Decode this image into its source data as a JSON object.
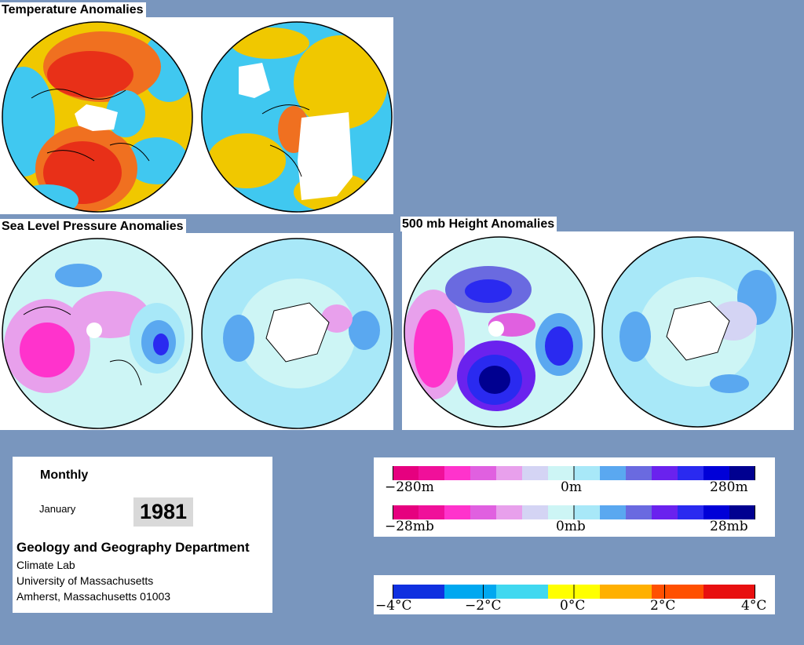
{
  "titles": {
    "temperature": "Temperature Anomalies",
    "slp": "Sea Level Pressure Anomalies",
    "height": "500 mb Height Anomalies"
  },
  "info": {
    "period": "Monthly",
    "month": "January",
    "year": "1981",
    "department": "Geology and Geography Department",
    "lab": "Climate Lab",
    "university": "University of Massachusetts",
    "address": "Amherst, Massachusetts 01003"
  },
  "legends": {
    "height": {
      "min": "−280m",
      "mid": "0m",
      "max": "280m"
    },
    "pressure": {
      "min": "−28mb",
      "mid": "0mb",
      "max": "28mb"
    },
    "temperature": {
      "labels": [
        "−4°C",
        "−2°C",
        "0°C",
        "2°C",
        "4°C"
      ]
    }
  },
  "colors": {
    "background": "#7996be",
    "anomaly_scale": [
      "#e6007f",
      "#f0109a",
      "#ff33cc",
      "#e060e0",
      "#e8a0ec",
      "#d4d4f4",
      "#cdf5f5",
      "#a8e8f8",
      "#5aa8f0",
      "#6a6ae0",
      "#6a22ee",
      "#2a2af0",
      "#0000d8",
      "#000090"
    ],
    "temperature_scale": [
      "#1030e0",
      "#00a8f0",
      "#40d8f0",
      "#ffff00",
      "#ffb000",
      "#ff5000",
      "#e81010"
    ]
  }
}
